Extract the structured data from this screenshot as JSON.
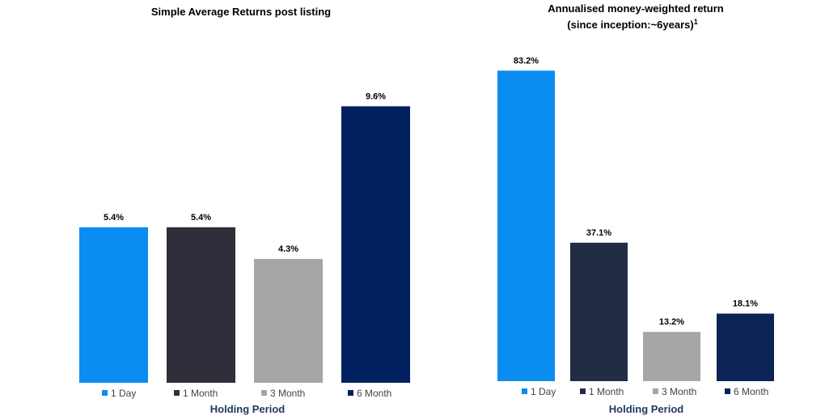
{
  "chart_data": [
    {
      "type": "bar",
      "title": "Simple Average Returns post listing",
      "xlabel": "Holding Period",
      "ylabel": "",
      "categories": [
        "1 Day",
        "1 Month",
        "3 Month",
        "6 Month"
      ],
      "values": [
        5.4,
        5.4,
        4.3,
        9.6
      ],
      "data_labels": [
        "5.4%",
        "5.4%",
        "4.3%",
        "9.6%"
      ],
      "colors": [
        "#0a8cf0",
        "#2e2f3a",
        "#a6a6a6",
        "#002060"
      ],
      "ylim": [
        0,
        10.2
      ],
      "grid": false,
      "legend_placement": "bottom"
    },
    {
      "type": "bar",
      "title": "Annualised money-weighted return",
      "title_line2": "(since inception:~6years)",
      "title_superscript": "1",
      "xlabel": "Holding Period",
      "ylabel": "",
      "categories": [
        "1 Day",
        "1 Month",
        "3 Month",
        "6 Month"
      ],
      "values": [
        83.2,
        37.1,
        13.2,
        18.1
      ],
      "data_labels": [
        "83.2%",
        "37.1%",
        "13.2%",
        "18.1%"
      ],
      "colors": [
        "#0a8cf0",
        "#232c45",
        "#a6a6a6",
        "#0d2357"
      ],
      "ylim": [
        0,
        85
      ],
      "grid": false,
      "legend_placement": "bottom"
    }
  ]
}
